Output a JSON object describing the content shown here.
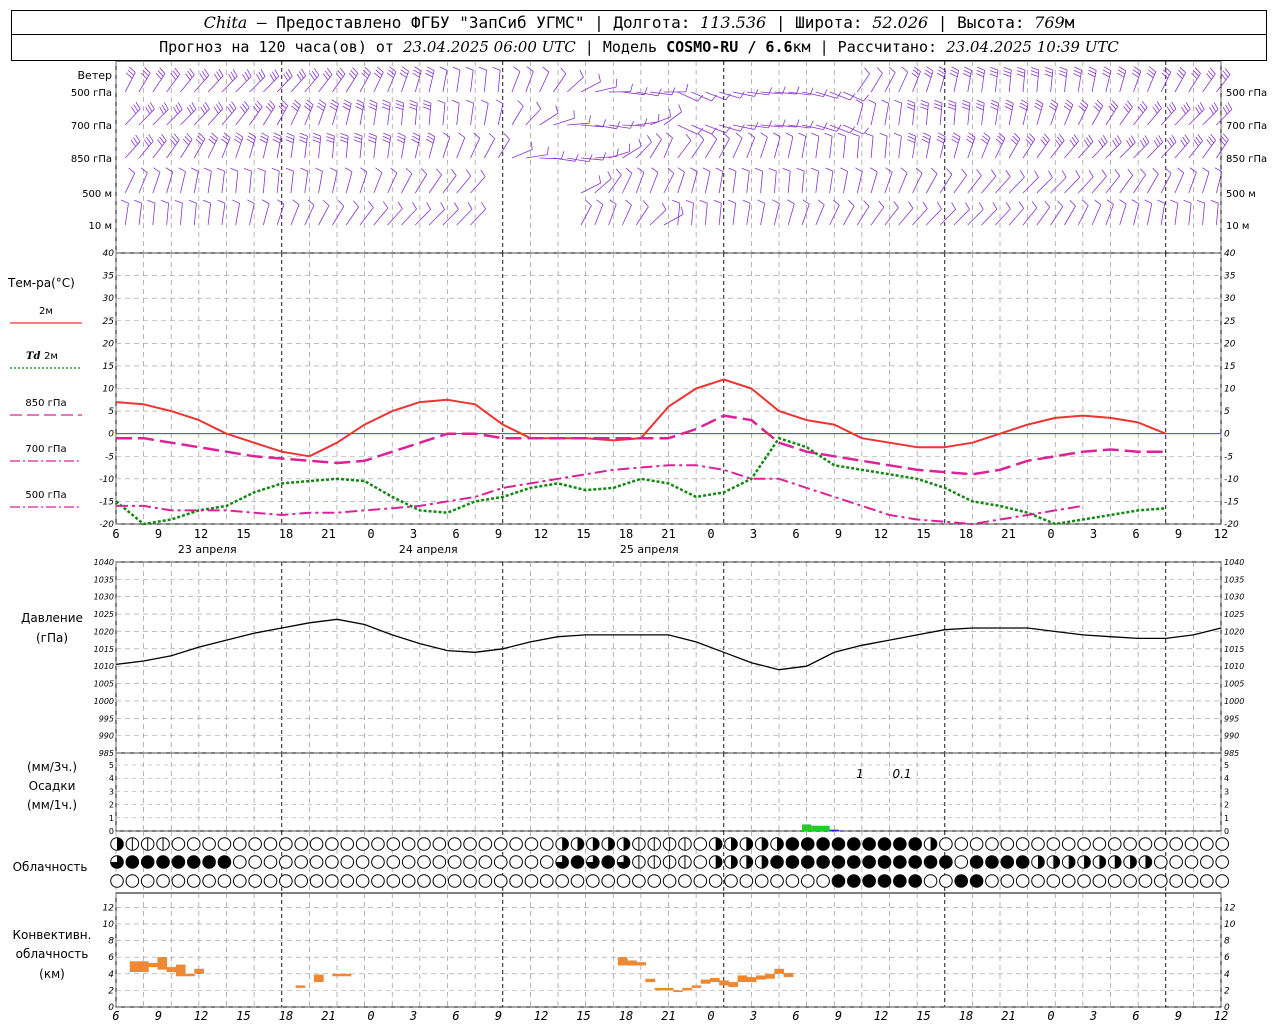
{
  "header": {
    "station": "Chita",
    "provider": " — Предоставлено ФГБУ \"ЗапСиб УГМС\" | Долгота: ",
    "lon": "113.536",
    "lat_label": " | Широта: ",
    "lat": "52.026",
    "alt_label": " | Высота: ",
    "alt": "769",
    "alt_unit": "м",
    "forecast_label": "Прогноз на 120 часа(ов) от ",
    "forecast_from": "23.04.2025 06:00 UTC",
    "model_label": " | Модель ",
    "model": "COSMO-RU / 6.6",
    "model_unit": "км",
    "calc_label": " | Рассчитано: ",
    "calc_time": "23.04.2025 10:39 UTC"
  },
  "colors": {
    "t2m": "#ee3333",
    "td2m": "#118811",
    "magenta": "#dd2299",
    "wind": "#8833cc",
    "pressure": "#000000",
    "precip_rain": "#22cc22",
    "precip_blue": "#2222cc",
    "convective": "#ee8833",
    "grid": "#999999"
  },
  "time_axis": {
    "hour_ticks": [
      "6",
      "9",
      "12",
      "15",
      "18",
      "21",
      "0",
      "3",
      "6",
      "9",
      "12",
      "15",
      "18",
      "21",
      "0",
      "3",
      "6",
      "9",
      "12",
      "15",
      "18",
      "21",
      "0",
      "3",
      "6",
      "9",
      "12"
    ],
    "dates": [
      "23 апреля",
      "24 апреля",
      "25 апреля"
    ]
  },
  "wind_panel": {
    "title": "Ветер",
    "levels": [
      "500 гПа",
      "700 гПа",
      "850 гПа",
      "500 м",
      "10  м"
    ],
    "right_levels": [
      "500 гПа",
      "700 гПа",
      "850 гПа",
      "500 м",
      "10  м"
    ]
  },
  "temp_panel": {
    "title": "Тем-ра(°C)",
    "legend": [
      {
        "label": "2м",
        "style": "solid",
        "color": "#ee3333"
      },
      {
        "label_it": "Td",
        "label": " 2м",
        "style": "dotted",
        "color": "#118811"
      },
      {
        "label": "850 гПа",
        "style": "dash",
        "color": "#dd2299"
      },
      {
        "label": "700 гПа",
        "style": "dashdot",
        "color": "#dd2299"
      },
      {
        "label": "500 гПа",
        "style": "dashdot",
        "color": "#dd2299"
      }
    ],
    "ticks": [
      "40",
      "35",
      "30",
      "25",
      "20",
      "15",
      "10",
      "5",
      "0",
      "-5",
      "-10",
      "-15",
      "-20"
    ]
  },
  "pressure_panel": {
    "title1": "Давление",
    "title2": "(гПа)",
    "ticks": [
      "1040",
      "1035",
      "1030",
      "1025",
      "1020",
      "1015",
      "1010",
      "1005",
      "1000",
      "995",
      "990",
      "985"
    ]
  },
  "precip_panel": {
    "title1": "(мм/3ч.)",
    "title2": "Осадки",
    "title3": "(мм/1ч.)",
    "ticks": [
      "5",
      "4",
      "3",
      "2",
      "1",
      "0"
    ],
    "annotations": [
      "1",
      "0.1"
    ]
  },
  "cloud_panel": {
    "title": "Облачность"
  },
  "conv_panel": {
    "title1": "Конвективн.",
    "title2": "облачность",
    "title3": "(км)",
    "ticks": [
      "12",
      "10",
      "8",
      "6",
      "4",
      "2",
      "0"
    ]
  },
  "chart_data": [
    {
      "type": "line",
      "panel": "temperature",
      "ylim": [
        -20,
        40
      ],
      "x_hours": [
        0,
        3,
        6,
        9,
        12,
        15,
        18,
        21,
        24,
        27,
        30,
        33,
        36,
        39,
        42,
        45,
        48,
        51,
        54,
        57,
        60,
        63,
        66,
        69,
        72,
        75,
        78,
        81,
        84,
        87,
        90,
        93,
        96,
        99,
        102,
        105,
        108,
        111,
        114,
        117,
        120
      ],
      "series": [
        {
          "name": "2м",
          "values": [
            7,
            6.5,
            5,
            3,
            0,
            -2,
            -4,
            -5,
            -2,
            2,
            5,
            7,
            7.5,
            6.5,
            2,
            -1,
            -1,
            -1,
            -1.5,
            -1,
            6,
            10,
            12,
            10,
            5,
            3,
            2,
            -1,
            -2,
            -3,
            -3,
            -2,
            0,
            2,
            3.5,
            4,
            3.5,
            2.5,
            0,
            null,
            null
          ]
        },
        {
          "name": "Td 2м",
          "values": [
            -15,
            -20,
            -19,
            -17,
            -16,
            -13,
            -11,
            -10.5,
            -10,
            -10.5,
            -14,
            -17,
            -17.5,
            -15,
            -14,
            -12,
            -11,
            -12.5,
            -12,
            -10,
            -11,
            -14,
            -13,
            -10,
            -1,
            -3,
            -7,
            -8,
            -9,
            -10,
            -12,
            -15,
            -16,
            -17.5,
            -20,
            -19,
            -18,
            -17,
            -16.5,
            null,
            null
          ]
        },
        {
          "name": "850 гПа",
          "values": [
            -1,
            -1,
            -2,
            -3,
            -4,
            -5,
            -5.5,
            -6,
            -6.5,
            -6,
            -4,
            -2,
            0,
            0,
            -1,
            -1,
            -1,
            -1,
            -1,
            -1,
            -1,
            1,
            4,
            3,
            -2,
            -4,
            -5,
            -6,
            -7,
            -8,
            -8.5,
            -9,
            -8,
            -6,
            -5,
            -4,
            -3.5,
            -4,
            -4,
            null,
            null
          ]
        },
        {
          "name": "700 гПа",
          "values": [
            -16,
            -16,
            -17,
            -17,
            -17,
            -17.5,
            -18,
            -17.5,
            -17.5,
            -17,
            -16.5,
            -16,
            -15,
            -14,
            -12,
            -11,
            -10,
            -9,
            -8,
            -7.5,
            -7,
            -7,
            -8,
            -10,
            -10,
            -12,
            -14,
            -16,
            -18,
            -19,
            -19.5,
            -20,
            -19,
            -18,
            -17,
            -16,
            null,
            null,
            null,
            null,
            null
          ]
        }
      ]
    },
    {
      "type": "line",
      "panel": "pressure",
      "ylim": [
        985,
        1040
      ],
      "x_hours": [
        0,
        3,
        6,
        9,
        12,
        15,
        18,
        21,
        24,
        27,
        30,
        33,
        36,
        39,
        42,
        45,
        48,
        51,
        54,
        57,
        60,
        63,
        66,
        69,
        72,
        75,
        78,
        81,
        84,
        87,
        90,
        93,
        96,
        99,
        102,
        105,
        108,
        111,
        114,
        117,
        120
      ],
      "series": [
        {
          "name": "Давление",
          "values": [
            1010.5,
            1011.5,
            1013,
            1015.5,
            1017.5,
            1019.5,
            1021,
            1022.5,
            1023.5,
            1022,
            1019,
            1016.5,
            1014.5,
            1014,
            1015,
            1017,
            1018.5,
            1019,
            1019,
            1019,
            1019,
            1017,
            1014,
            1011,
            1009,
            1010,
            1014,
            1016,
            1017.5,
            1019,
            1020.5,
            1021,
            1021,
            1021,
            1020,
            1019,
            1018.5,
            1018,
            1018,
            1019,
            1021
          ]
        }
      ]
    },
    {
      "type": "bar",
      "panel": "precipitation",
      "ylim": [
        0,
        5
      ],
      "bars": [
        {
          "x": 75,
          "value": 0.5,
          "color": "green"
        },
        {
          "x": 76,
          "value": 0.4,
          "color": "green"
        },
        {
          "x": 77,
          "value": 0.4,
          "color": "green"
        },
        {
          "x": 78,
          "value": 0.1,
          "color": "blue"
        }
      ]
    },
    {
      "type": "bar",
      "panel": "convective",
      "ylim": [
        0,
        12
      ],
      "bars": [
        {
          "x": 2,
          "from": 4.2,
          "to": 5.5
        },
        {
          "x": 3,
          "from": 4.2,
          "to": 5.5
        },
        {
          "x": 4,
          "from": 4.8,
          "to": 5.3
        },
        {
          "x": 5,
          "from": 4.5,
          "to": 6
        },
        {
          "x": 6,
          "from": 4.2,
          "to": 4.8
        },
        {
          "x": 7,
          "from": 3.7,
          "to": 5.1
        },
        {
          "x": 8,
          "from": 3.7,
          "to": 4
        },
        {
          "x": 9,
          "from": 4,
          "to": 4.6
        },
        {
          "x": 20,
          "from": 2.3,
          "to": 2.6
        },
        {
          "x": 22,
          "from": 3,
          "to": 3.9
        },
        {
          "x": 24,
          "from": 3.7,
          "to": 4
        },
        {
          "x": 25,
          "from": 3.7,
          "to": 4
        },
        {
          "x": 55,
          "from": 5,
          "to": 6
        },
        {
          "x": 56,
          "from": 5,
          "to": 5.6
        },
        {
          "x": 57,
          "from": 5,
          "to": 5.4
        },
        {
          "x": 58,
          "from": 3,
          "to": 3.4
        },
        {
          "x": 59,
          "from": 2,
          "to": 2.3
        },
        {
          "x": 60,
          "from": 2,
          "to": 2.3
        },
        {
          "x": 61,
          "from": 1.8,
          "to": 2
        },
        {
          "x": 62,
          "from": 2,
          "to": 2.3
        },
        {
          "x": 63,
          "from": 2.3,
          "to": 2.6
        },
        {
          "x": 64,
          "from": 2.8,
          "to": 3.3
        },
        {
          "x": 65,
          "from": 3,
          "to": 3.5
        },
        {
          "x": 66,
          "from": 2.6,
          "to": 3.2
        },
        {
          "x": 67,
          "from": 2.4,
          "to": 3
        },
        {
          "x": 68,
          "from": 3,
          "to": 3.8
        },
        {
          "x": 69,
          "from": 3,
          "to": 3.6
        },
        {
          "x": 70,
          "from": 3.3,
          "to": 3.8
        },
        {
          "x": 71,
          "from": 3.4,
          "to": 4
        },
        {
          "x": 72,
          "from": 4,
          "to": 4.6
        },
        {
          "x": 73,
          "from": 3.6,
          "to": 4.1
        }
      ]
    }
  ]
}
